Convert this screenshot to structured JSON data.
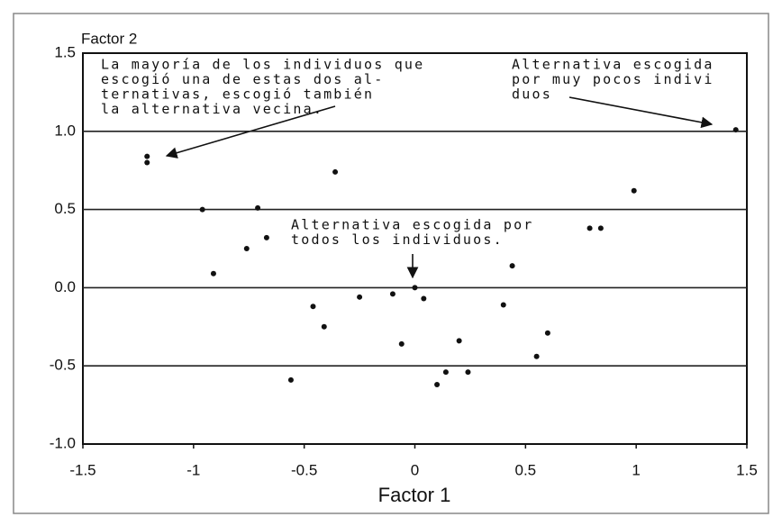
{
  "chart_data": {
    "type": "scatter",
    "xlabel": "Factor 1",
    "ylabel": "Factor 2",
    "x": [
      -1.21,
      -1.21,
      1.45,
      -0.96,
      -0.71,
      -0.36,
      -0.67,
      -0.76,
      -0.91,
      0.99,
      0.79,
      0.84,
      0,
      0.44,
      0.4,
      -0.1,
      0.04,
      -0.25,
      -0.46,
      -0.41,
      -0.06,
      0.2,
      0.6,
      0.55,
      0.14,
      0.24,
      0.1,
      -0.56
    ],
    "values": [
      0.84,
      0.8,
      1.01,
      0.5,
      0.51,
      0.74,
      0.32,
      0.25,
      0.09,
      0.62,
      0.38,
      0.38,
      0,
      0.14,
      -0.11,
      -0.04,
      -0.07,
      -0.06,
      -0.12,
      -0.25,
      -0.36,
      -0.34,
      -0.29,
      -0.44,
      -0.54,
      -0.54,
      -0.62,
      -0.59
    ],
    "color": "#111111",
    "xlim": [
      -1.5,
      1.5
    ],
    "ylim": [
      -1.0,
      1.5
    ],
    "xticks": [
      -1.5,
      -1,
      -0.5,
      0,
      0.5,
      1,
      1.5
    ],
    "yticks": [
      {
        "value": -1.0,
        "label": "-1.0"
      },
      -0.5,
      {
        "value": 0.0,
        "label": "0.0"
      },
      0.5,
      {
        "value": 1.0,
        "label": "1.0"
      },
      1.5
    ],
    "grid": true,
    "annotations": [
      {
        "lines": [
          "La mayoría de los individuos que",
          "escogió  una de estas dos  al-",
          "ternativas, escogió también",
          "la alternativa vecina."
        ]
      },
      {
        "lines": [
          "Alternativa escogida",
          "por muy pocos indivi",
          "duos"
        ]
      },
      {
        "lines": [
          "Alternativa escogida por",
          "todos los individuos."
        ]
      }
    ]
  }
}
